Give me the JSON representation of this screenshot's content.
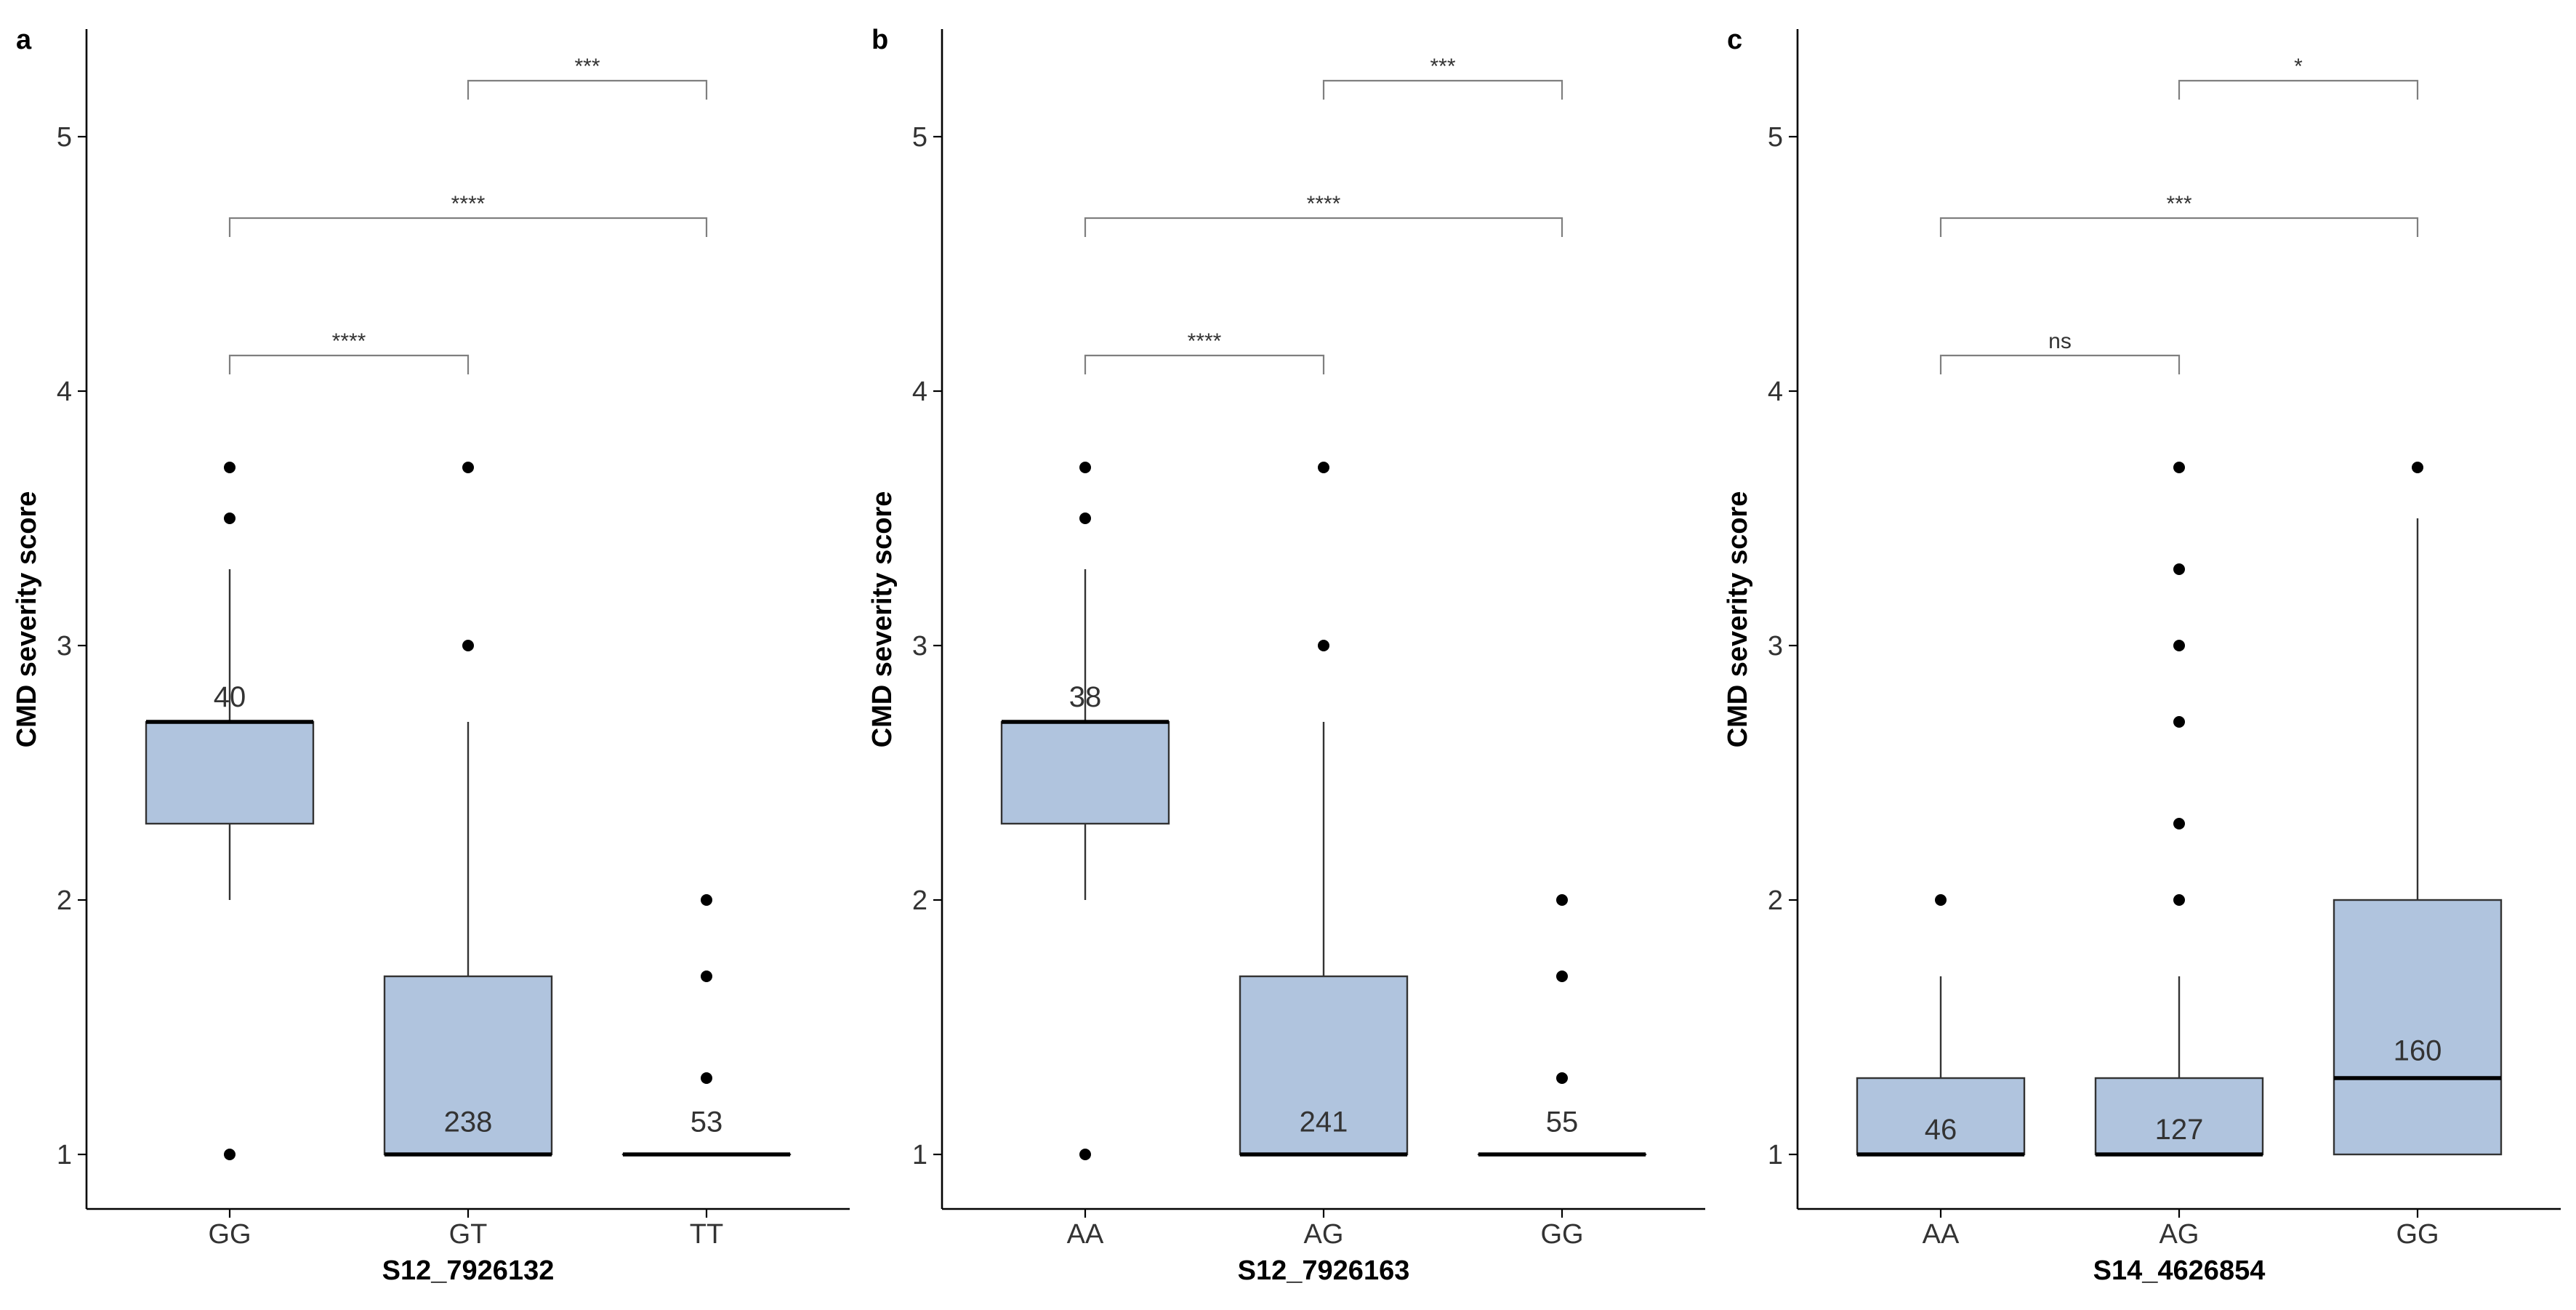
{
  "chart_data": [
    {
      "panel": "a",
      "type": "box",
      "xlabel": "S12_7926132",
      "ylabel": "CMD severity score",
      "ylim": [
        0.78,
        5.42
      ],
      "yticks": [
        1,
        2,
        3,
        4,
        5
      ],
      "fill_color": "#b0c4de",
      "categories": [
        "GG",
        "GT",
        "TT"
      ],
      "boxes": [
        {
          "category": "GG",
          "q1": 2.3,
          "median": 2.7,
          "q3": 2.7,
          "whisker_low": 2.0,
          "whisker_high": 3.3,
          "outliers": [
            3.5,
            3.7,
            1.0
          ],
          "n": "40",
          "n_y": 2.8
        },
        {
          "category": "GT",
          "q1": 1.0,
          "median": 1.0,
          "q3": 1.7,
          "whisker_low": 1.0,
          "whisker_high": 2.7,
          "outliers": [
            3.0,
            3.7
          ],
          "n": "238",
          "n_y": 1.13
        },
        {
          "category": "TT",
          "q1": 1.0,
          "median": 1.0,
          "q3": 1.0,
          "whisker_low": 1.0,
          "whisker_high": 1.0,
          "outliers": [
            1.3,
            1.7,
            2.0
          ],
          "n": "53",
          "n_y": 1.13
        }
      ],
      "comparisons": [
        {
          "from": 0,
          "to": 1,
          "y": 4.14,
          "label": "****"
        },
        {
          "from": 0,
          "to": 2,
          "y": 4.68,
          "label": "****"
        },
        {
          "from": 1,
          "to": 2,
          "y": 5.22,
          "label": "***"
        }
      ]
    },
    {
      "panel": "b",
      "type": "box",
      "xlabel": "S12_7926163",
      "ylabel": "CMD severity score",
      "ylim": [
        0.78,
        5.42
      ],
      "yticks": [
        1,
        2,
        3,
        4,
        5
      ],
      "fill_color": "#b0c4de",
      "categories": [
        "AA",
        "AG",
        "GG"
      ],
      "boxes": [
        {
          "category": "AA",
          "q1": 2.3,
          "median": 2.7,
          "q3": 2.7,
          "whisker_low": 2.0,
          "whisker_high": 3.3,
          "outliers": [
            3.5,
            3.7,
            1.0
          ],
          "n": "38",
          "n_y": 2.8
        },
        {
          "category": "AG",
          "q1": 1.0,
          "median": 1.0,
          "q3": 1.7,
          "whisker_low": 1.0,
          "whisker_high": 2.7,
          "outliers": [
            3.0,
            3.7
          ],
          "n": "241",
          "n_y": 1.13
        },
        {
          "category": "GG",
          "q1": 1.0,
          "median": 1.0,
          "q3": 1.0,
          "whisker_low": 1.0,
          "whisker_high": 1.0,
          "outliers": [
            1.3,
            1.7,
            2.0
          ],
          "n": "55",
          "n_y": 1.13
        }
      ],
      "comparisons": [
        {
          "from": 0,
          "to": 1,
          "y": 4.14,
          "label": "****"
        },
        {
          "from": 0,
          "to": 2,
          "y": 4.68,
          "label": "****"
        },
        {
          "from": 1,
          "to": 2,
          "y": 5.22,
          "label": "***"
        }
      ]
    },
    {
      "panel": "c",
      "type": "box",
      "xlabel": "S14_4626854",
      "ylabel": "CMD severity score",
      "ylim": [
        0.78,
        5.42
      ],
      "yticks": [
        1,
        2,
        3,
        4,
        5
      ],
      "fill_color": "#b0c4de",
      "categories": [
        "AA",
        "AG",
        "GG"
      ],
      "boxes": [
        {
          "category": "AA",
          "q1": 1.0,
          "median": 1.0,
          "q3": 1.3,
          "whisker_low": 1.0,
          "whisker_high": 1.7,
          "outliers": [
            2.0
          ],
          "n": "46",
          "n_y": 1.1
        },
        {
          "category": "AG",
          "q1": 1.0,
          "median": 1.0,
          "q3": 1.3,
          "whisker_low": 1.0,
          "whisker_high": 1.7,
          "outliers": [
            2.0,
            2.3,
            2.7,
            3.0,
            3.3,
            3.7
          ],
          "n": "127",
          "n_y": 1.1
        },
        {
          "category": "GG",
          "q1": 1.0,
          "median": 1.3,
          "q3": 2.0,
          "whisker_low": 1.0,
          "whisker_high": 3.5,
          "outliers": [
            3.7
          ],
          "n": "160",
          "n_y": 1.41
        }
      ],
      "comparisons": [
        {
          "from": 0,
          "to": 1,
          "y": 4.14,
          "label": "ns"
        },
        {
          "from": 0,
          "to": 2,
          "y": 4.68,
          "label": "***"
        },
        {
          "from": 1,
          "to": 2,
          "y": 5.22,
          "label": "*"
        }
      ]
    }
  ]
}
